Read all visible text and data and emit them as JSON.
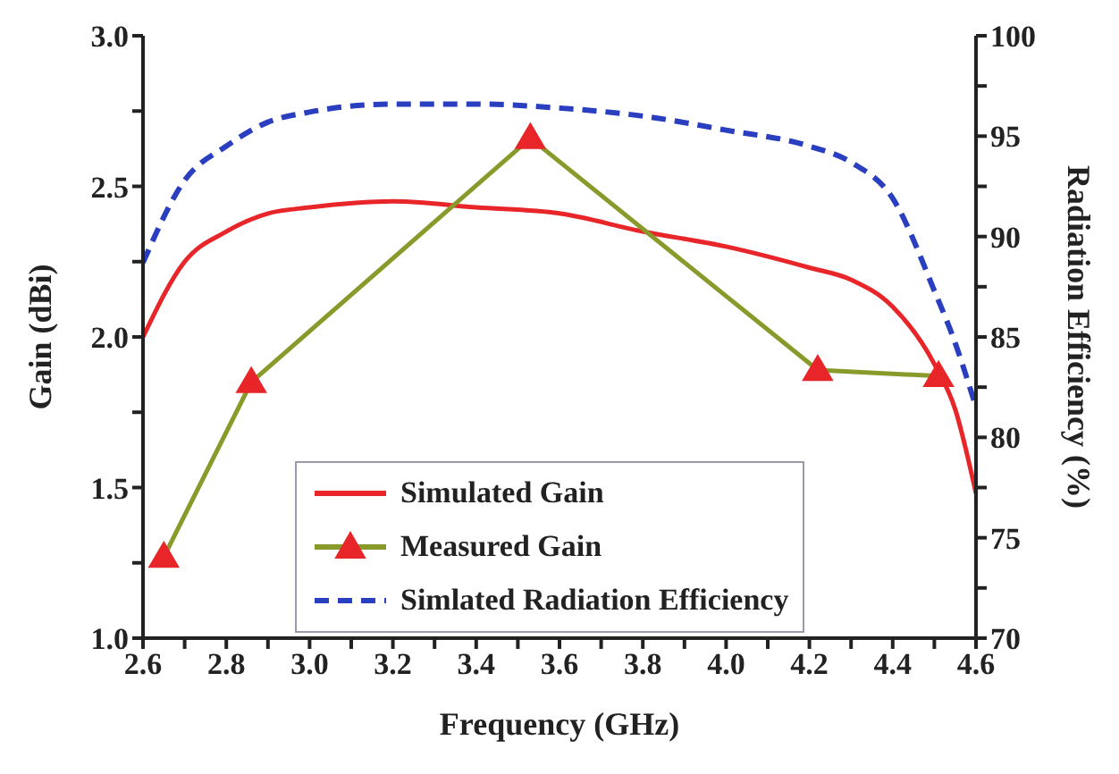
{
  "chart_data": {
    "type": "line",
    "xlabel": "Frequency (GHz)",
    "ylabel": "Gain (dBi)",
    "y2label": "Radiation Efficiency (%)",
    "xlim": [
      2.6,
      4.6
    ],
    "xticks": [
      2.6,
      {
        "value": 2.7,
        "label": null
      },
      2.8,
      {
        "value": 2.9,
        "label": null
      },
      {
        "value": 3,
        "label": "3.0"
      },
      {
        "value": 3.1,
        "label": null
      },
      3.2,
      {
        "value": 3.3,
        "label": null
      },
      3.4,
      {
        "value": 3.5,
        "label": null
      },
      3.6,
      {
        "value": 3.7,
        "label": null
      },
      3.8,
      {
        "value": 3.9,
        "label": null
      },
      {
        "value": 4,
        "label": "4.0"
      },
      {
        "value": 4.1,
        "label": null
      },
      4.2,
      {
        "value": 4.3,
        "label": null
      },
      4.4,
      {
        "value": 4.5,
        "label": null
      },
      4.6
    ],
    "ylim": [
      1,
      3
    ],
    "yticks": [
      {
        "value": 1,
        "label": "1.0"
      },
      {
        "value": 1.25,
        "label": null
      },
      1.5,
      {
        "value": 1.75,
        "label": null
      },
      {
        "value": 2,
        "label": "2.0"
      },
      {
        "value": 2.25,
        "label": null
      },
      2.5,
      {
        "value": 2.75,
        "label": null
      },
      {
        "value": 3,
        "label": "3.0"
      }
    ],
    "y2lim": [
      70,
      100
    ],
    "y2ticks": [
      70,
      {
        "value": 72.5,
        "label": null
      },
      75,
      {
        "value": 77.5,
        "label": null
      },
      80,
      {
        "value": 82.5,
        "label": null
      },
      85,
      {
        "value": 87.5,
        "label": null
      },
      90,
      {
        "value": 92.5,
        "label": null
      },
      95,
      {
        "value": 97.5,
        "label": null
      },
      100
    ],
    "legend": "bottom",
    "series": [
      {
        "name": "Simulated Gain",
        "color": "#e8262a",
        "marker": "none",
        "line_style": "solid",
        "x": [
          2.6,
          2.7,
          2.8,
          2.9,
          3.0,
          3.2,
          3.4,
          3.6,
          3.8,
          4.0,
          4.2,
          4.3,
          4.4,
          4.5,
          4.55,
          4.6
        ],
        "values": [
          2.0,
          2.25,
          2.35,
          2.41,
          2.43,
          2.45,
          2.43,
          2.41,
          2.35,
          2.3,
          2.23,
          2.19,
          2.1,
          1.91,
          1.76,
          1.48
        ]
      },
      {
        "name": "Measured Gain",
        "color": "#8a9a2a",
        "marker": "triangle",
        "line_style": "solid",
        "x": [
          2.65,
          2.86,
          3.53,
          4.22,
          4.51
        ],
        "values": [
          1.27,
          1.85,
          2.66,
          1.89,
          1.87
        ]
      },
      {
        "name": "Simlated Radiation Efficiency",
        "color": "#2a3ec0",
        "marker": "none",
        "line_style": "dashed",
        "axis": "y2",
        "x": [
          2.6,
          2.7,
          2.8,
          2.9,
          3.0,
          3.2,
          3.4,
          3.6,
          3.8,
          4.0,
          4.2,
          4.3,
          4.4,
          4.5,
          4.55,
          4.6
        ],
        "values": [
          88.7,
          92.8,
          94.5,
          95.7,
          96.2,
          96.6,
          96.6,
          96.4,
          96.0,
          95.3,
          94.5,
          93.7,
          91.9,
          87.3,
          84.7,
          81.5
        ]
      }
    ]
  }
}
